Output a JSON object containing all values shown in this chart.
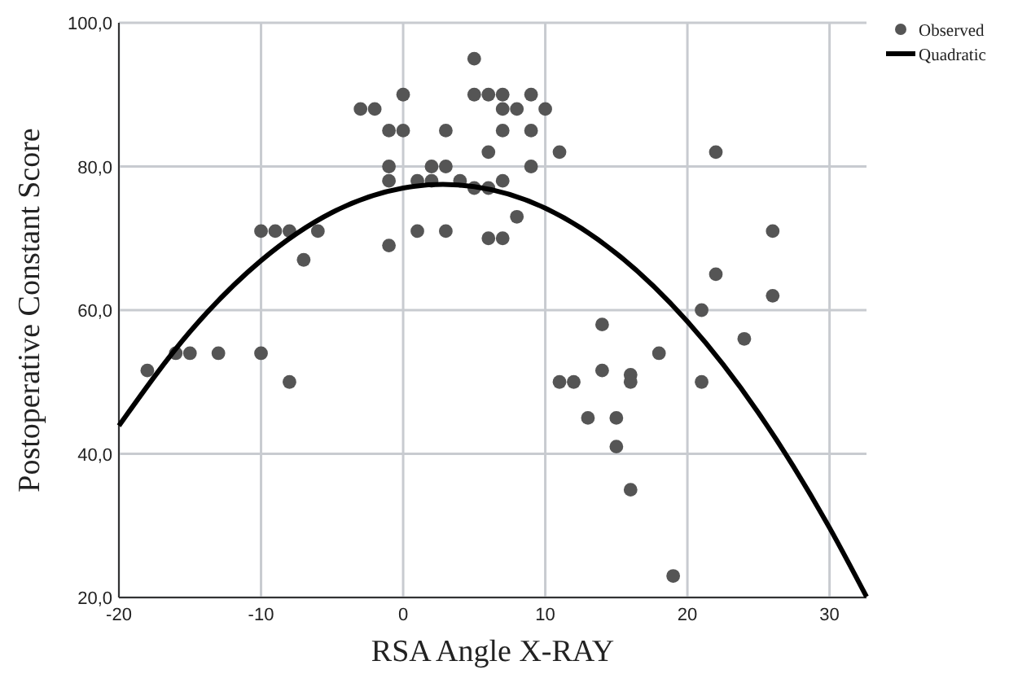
{
  "chart_data": {
    "type": "scatter",
    "xlabel": "RSA Angle X-RAY",
    "ylabel": "Postoperative Constant Score",
    "xlim": [
      -20,
      32.6
    ],
    "ylim": [
      20,
      100
    ],
    "xticks": [
      -20,
      -10,
      0,
      10,
      20,
      30
    ],
    "yticks": [
      {
        "value": 20,
        "label": "20,0"
      },
      {
        "value": 40,
        "label": "40,0"
      },
      {
        "value": 60,
        "label": "60,0"
      },
      {
        "value": 80,
        "label": "80,0"
      },
      {
        "value": 100,
        "label": "100,0"
      }
    ],
    "grid": true,
    "legend": "top right",
    "series": [
      {
        "name": "Observed",
        "marker": "circle",
        "color": "#555555",
        "x": [
          -18,
          -16,
          -15,
          -13,
          -10,
          -8,
          -10,
          -9,
          -8,
          -6,
          -7,
          -3,
          -2,
          0,
          -1,
          0,
          -1,
          -1,
          -1,
          1,
          1,
          2,
          2,
          3,
          3,
          3,
          4,
          5,
          5,
          5,
          6,
          6,
          6,
          6,
          7,
          7,
          7,
          7,
          7,
          8,
          8,
          9,
          9,
          9,
          10,
          11,
          11,
          12,
          13,
          14,
          14,
          15,
          15,
          16,
          16,
          16,
          18,
          19,
          21,
          21,
          22,
          22,
          24,
          26,
          26
        ],
        "values": [
          51.6,
          54,
          54,
          54,
          54,
          50,
          71,
          71,
          71,
          71,
          67,
          88,
          88,
          90,
          85,
          85,
          80,
          78,
          69,
          78,
          71,
          80,
          78,
          85,
          80,
          71,
          78,
          95,
          90,
          77,
          90,
          82,
          77,
          70,
          90,
          88,
          85,
          78,
          70,
          88,
          73,
          90,
          85,
          80,
          88,
          82,
          50,
          50,
          45,
          58,
          51.6,
          45,
          41,
          51,
          50,
          35,
          54,
          23,
          60,
          50,
          82,
          65,
          56,
          71,
          62
        ]
      },
      {
        "name": "Quadratic",
        "type": "line",
        "marker": "none",
        "line_style": "solid",
        "color": "#000000",
        "x": [
          -20,
          -15,
          -10,
          -5,
          0,
          2.8,
          5,
          10,
          15,
          20,
          25,
          30,
          32.6
        ],
        "values": [
          43.9,
          57.0,
          66.9,
          73.6,
          77.0,
          77.5,
          77.2,
          74.2,
          67.9,
          58.4,
          45.7,
          29.7,
          20.1
        ]
      }
    ]
  }
}
